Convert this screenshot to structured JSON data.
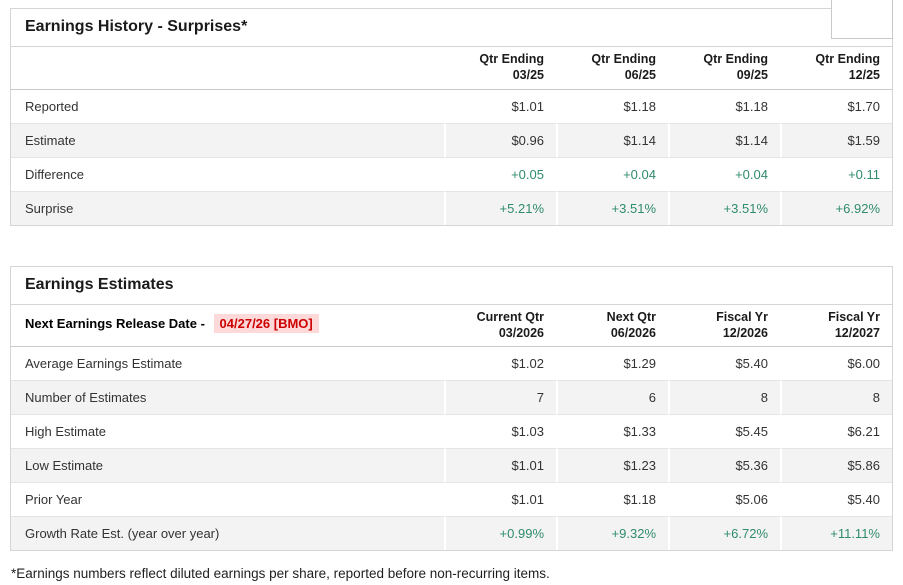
{
  "colors": {
    "positive_green": "#2f8c6a",
    "alert_red": "#cc0000",
    "alert_red_bg": "#fdd9d9",
    "row_alt_bg": "#f3f3f3",
    "panel_border": "#d5d5d5"
  },
  "history_table": {
    "title": "Earnings History - Surprises*",
    "columns": [
      {
        "line1": "Qtr Ending",
        "line2": "03/25"
      },
      {
        "line1": "Qtr Ending",
        "line2": "06/25"
      },
      {
        "line1": "Qtr Ending",
        "line2": "09/25"
      },
      {
        "line1": "Qtr Ending",
        "line2": "12/25"
      }
    ],
    "rows": [
      {
        "label": "Reported",
        "values": [
          "$1.01",
          "$1.18",
          "$1.18",
          "$1.70"
        ],
        "positive": false
      },
      {
        "label": "Estimate",
        "values": [
          "$0.96",
          "$1.14",
          "$1.14",
          "$1.59"
        ],
        "positive": false
      },
      {
        "label": "Difference",
        "values": [
          "+0.05",
          "+0.04",
          "+0.04",
          "+0.11"
        ],
        "positive": true
      },
      {
        "label": "Surprise",
        "values": [
          "+5.21%",
          "+3.51%",
          "+3.51%",
          "+6.92%"
        ],
        "positive": true
      }
    ]
  },
  "estimates_table": {
    "title": "Earnings Estimates",
    "release_label": "Next Earnings Release Date - ",
    "release_date": "04/27/26 [BMO]",
    "columns": [
      {
        "line1": "Current Qtr",
        "line2": "03/2026"
      },
      {
        "line1": "Next Qtr",
        "line2": "06/2026"
      },
      {
        "line1": "Fiscal Yr",
        "line2": "12/2026"
      },
      {
        "line1": "Fiscal Yr",
        "line2": "12/2027"
      }
    ],
    "rows": [
      {
        "label": "Average Earnings Estimate",
        "values": [
          "$1.02",
          "$1.29",
          "$5.40",
          "$6.00"
        ],
        "positive": false
      },
      {
        "label": "Number of Estimates",
        "values": [
          "7",
          "6",
          "8",
          "8"
        ],
        "positive": false
      },
      {
        "label": "High Estimate",
        "values": [
          "$1.03",
          "$1.33",
          "$5.45",
          "$6.21"
        ],
        "positive": false
      },
      {
        "label": "Low Estimate",
        "values": [
          "$1.01",
          "$1.23",
          "$5.36",
          "$5.86"
        ],
        "positive": false
      },
      {
        "label": "Prior Year",
        "values": [
          "$1.01",
          "$1.18",
          "$5.06",
          "$5.40"
        ],
        "positive": false
      },
      {
        "label": "Growth Rate Est. (year over year)",
        "values": [
          "+0.99%",
          "+9.32%",
          "+6.72%",
          "+11.11%"
        ],
        "positive": true
      }
    ]
  },
  "footnote": "*Earnings numbers reflect diluted earnings per share, reported before non-recurring items."
}
